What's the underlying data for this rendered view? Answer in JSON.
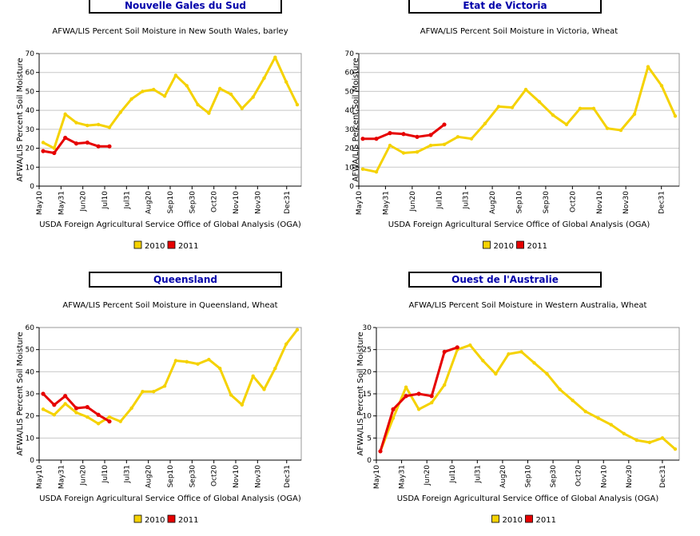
{
  "legend": [
    "2010",
    "2011"
  ],
  "colors": {
    "series_2010": "#f5d200",
    "series_2011": "#e60000",
    "region_title": "#0000aa",
    "grid": "#c8c8c8"
  },
  "chart_data": [
    {
      "region": "Nouvelle Gales du Sud",
      "type": "line",
      "title": "AFWA/LIS Percent Soil Moisture in New South Wales, barley",
      "xlabel": "USDA Foreign Agricultural Service Office of Global Analysis (OGA)",
      "ylabel": "AFWA/LIS Percent Soil Moisture",
      "ylim": [
        0,
        70
      ],
      "yticks": [
        0,
        10,
        20,
        30,
        40,
        50,
        60,
        70
      ],
      "x_ticks": [
        "May10",
        "May31",
        "Jun20",
        "Jul10",
        "Jul31",
        "Aug20",
        "Sep10",
        "Sep30",
        "Oct20",
        "Nov10",
        "Nov30",
        "Dec31"
      ],
      "grid": true,
      "legend_position": "bottom",
      "series": [
        {
          "name": "2010",
          "values": [
            23,
            20,
            38,
            33.5,
            32,
            32.5,
            31,
            39,
            46,
            50,
            51,
            47.5,
            58.5,
            53,
            43,
            38.5,
            51.5,
            48.5,
            41,
            47,
            57,
            68,
            55,
            43
          ]
        },
        {
          "name": "2011",
          "values": [
            18.5,
            17.5,
            25.5,
            22.5,
            23,
            21,
            21
          ]
        }
      ]
    },
    {
      "region": "Etat de Victoria",
      "type": "line",
      "title": "AFWA/LIS Percent Soil Moisture in Victoria, Wheat",
      "xlabel": "USDA Foreign Agricultural Service Office of Global Analysis (OGA)",
      "ylabel": "AFWA/LIS Percent Soil Moisture",
      "ylim": [
        0,
        70
      ],
      "yticks": [
        0,
        10,
        20,
        30,
        40,
        50,
        60,
        70
      ],
      "x_ticks": [
        "May10",
        "May31",
        "Jun20",
        "Jul10",
        "Jul31",
        "Aug20",
        "Sep10",
        "Sep30",
        "Oct20",
        "Nov10",
        "Nov30",
        "Dec31"
      ],
      "grid": true,
      "legend_position": "bottom",
      "series": [
        {
          "name": "2010",
          "values": [
            9,
            7.5,
            21.5,
            17.5,
            18,
            21.5,
            22,
            26,
            25,
            33,
            42,
            41.5,
            51,
            44.5,
            37.5,
            32.5,
            41,
            41,
            30.5,
            29.5,
            38,
            63,
            53,
            37
          ]
        },
        {
          "name": "2011",
          "values": [
            25,
            25,
            28,
            27.5,
            26,
            27,
            32.5
          ]
        }
      ]
    },
    {
      "region": "Queensland",
      "type": "line",
      "title": "AFWA/LIS Percent Soil Moisture in Queensland, Wheat",
      "xlabel": "USDA Foreign Agricultural Service Office of Global Analysis (OGA)",
      "ylabel": "AFWA/LIS Percent Soil Moisture",
      "ylim": [
        0,
        60
      ],
      "yticks": [
        0,
        10,
        20,
        30,
        40,
        50,
        60
      ],
      "x_ticks": [
        "May10",
        "May31",
        "Jun20",
        "Jul10",
        "Jul31",
        "Aug20",
        "Sep10",
        "Sep30",
        "Oct20",
        "Nov10",
        "Nov30",
        "Dec31"
      ],
      "grid": true,
      "legend_position": "bottom",
      "series": [
        {
          "name": "2010",
          "values": [
            23,
            20.5,
            25.5,
            21.5,
            19.5,
            16.5,
            19.5,
            17.5,
            23.5,
            31,
            31,
            33.5,
            45,
            44.5,
            43.5,
            45.5,
            41.5,
            29.5,
            25,
            38,
            32,
            41.5,
            52.5,
            59
          ]
        },
        {
          "name": "2011",
          "values": [
            30,
            25,
            29,
            23.5,
            24,
            20.5,
            17.5
          ]
        }
      ]
    },
    {
      "region": "Ouest de l'Australie",
      "type": "line",
      "title": "AFWA/LIS Percent Soil Moisture in Western Australia, Wheat",
      "xlabel": "USDA Foreign Agricultural Service Office of Global Analysis (OGA)",
      "ylabel": "AFWA/LIS Percent Soil Moisture",
      "ylim": [
        0,
        30
      ],
      "yticks": [
        0,
        5,
        10,
        15,
        20,
        25,
        30
      ],
      "x_ticks": [
        "May10",
        "May31",
        "Jun20",
        "Jul10",
        "Jul31",
        "Aug20",
        "Sep10",
        "Sep30",
        "Oct20",
        "Nov10",
        "Nov30",
        "Dec31"
      ],
      "grid": true,
      "legend_position": "bottom",
      "series": [
        {
          "name": "2010",
          "values": [
            2,
            9.5,
            16.5,
            11.5,
            13,
            17,
            25,
            26,
            22.5,
            19.5,
            24,
            24.5,
            22,
            19.5,
            16,
            13.5,
            11,
            9.5,
            8,
            6,
            4.5,
            4,
            5,
            2.5
          ]
        },
        {
          "name": "2011",
          "values": [
            2,
            11.5,
            14.5,
            15,
            14.5,
            24.5,
            25.5
          ]
        }
      ]
    }
  ]
}
